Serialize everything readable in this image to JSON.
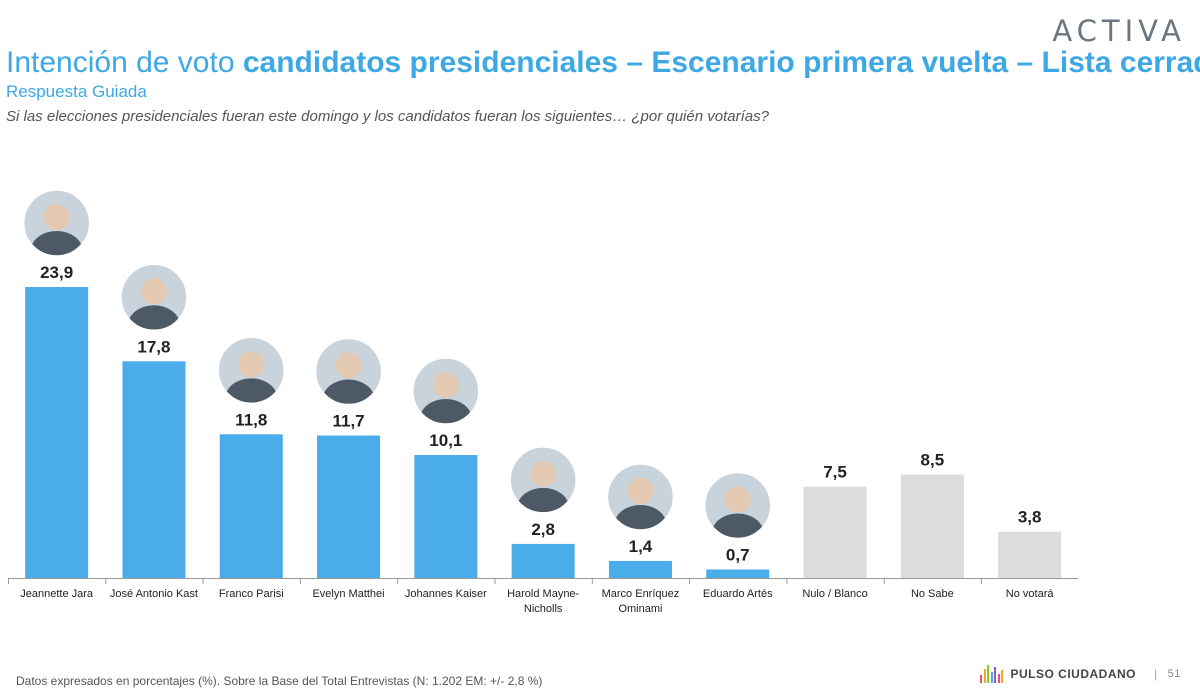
{
  "header": {
    "logo": "ACTIVA",
    "title_light": "Intención de voto ",
    "title_bold": "candidatos presidenciales – Escenario primera vuelta – Lista cerrada",
    "subtitle": "Respuesta Guiada",
    "question": "Si las elecciones presidenciales fueran este domingo y los candidatos fueran los siguientes… ¿por quién votarías?"
  },
  "chart_data": {
    "type": "bar",
    "title": "",
    "xlabel": "",
    "ylabel": "",
    "ylim": [
      0,
      25
    ],
    "grid": false,
    "categories": [
      "Jeannette Jara",
      "José Antonio Kast",
      "Franco Parisi",
      "Evelyn Matthei",
      "Johannes Kaiser",
      "Harold Mayne-Nicholls",
      "Marco Enríquez Ominami",
      "Eduardo Artés",
      "Nulo / Blanco",
      "No Sabe",
      "No votará"
    ],
    "values": [
      23.9,
      17.8,
      11.8,
      11.7,
      10.1,
      2.8,
      1.4,
      0.7,
      7.5,
      8.5,
      3.8
    ],
    "value_labels": [
      "23,9",
      "17,8",
      "11,8",
      "11,7",
      "10,1",
      "2,8",
      "1,4",
      "0,7",
      "7,5",
      "8,5",
      "3,8"
    ],
    "has_portrait": [
      true,
      true,
      true,
      true,
      true,
      true,
      true,
      true,
      false,
      false,
      false
    ],
    "colors": {
      "candidate": "#4aace8",
      "other": "#dcdcdc",
      "axis": "#999999",
      "label": "#222222"
    }
  },
  "footer": {
    "note": "Datos expresados en porcentajes (%). Sobre la Base del Total Entrevistas (N: 1.202  EM: +/- 2,8 %)",
    "brand": "PULSO CIUDADANO",
    "separator": "|",
    "page": "51",
    "brand_colors": [
      "#e94e77",
      "#f5a623",
      "#7ed321",
      "#4aace8",
      "#9b59b6",
      "#e94e77",
      "#f5a623"
    ]
  }
}
